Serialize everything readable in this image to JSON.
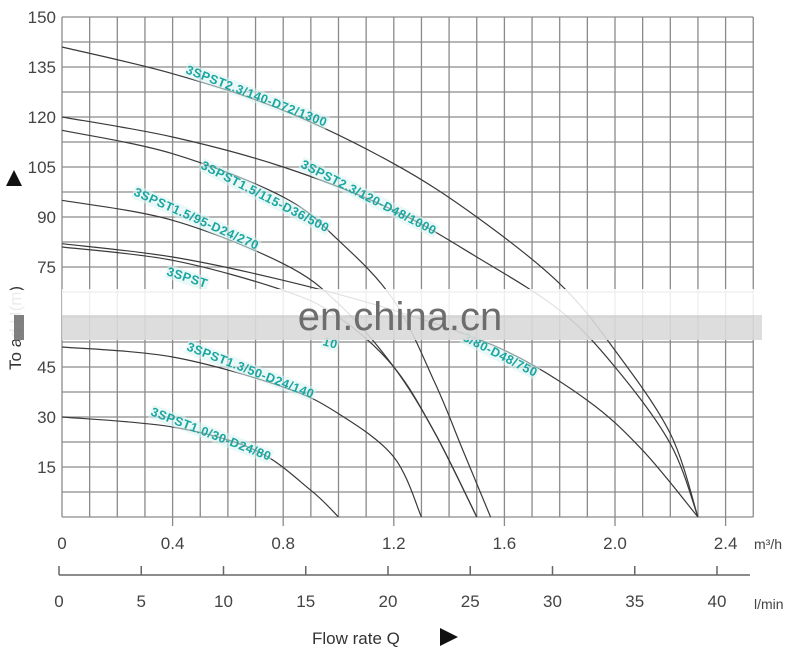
{
  "chart_data": {
    "type": "line",
    "title": "",
    "xlabel": "Flow rate Q",
    "ylabel": "Total Head H(m)",
    "x_unit_primary": "m³/h",
    "x_unit_secondary": "l/min",
    "xlim": [
      0,
      2.5
    ],
    "ylim": [
      0,
      150
    ],
    "grid": true,
    "y_ticks": [
      15,
      30,
      45,
      60,
      75,
      90,
      105,
      120,
      135,
      150
    ],
    "y_tick_labels": [
      "15",
      "30",
      "45",
      "",
      "75",
      "90",
      "105",
      "120",
      "135",
      "150"
    ],
    "x_ticks_primary": [
      0,
      0.4,
      0.8,
      1.2,
      1.6,
      2.0,
      2.4
    ],
    "x_tick_labels_primary": [
      "0",
      "0.4",
      "0.8",
      "1.2",
      "1.6",
      "2.0",
      "2.4"
    ],
    "x_ticks_secondary": [
      0,
      5,
      10,
      15,
      20,
      25,
      30,
      35,
      40
    ],
    "x_tick_labels_secondary": [
      "0",
      "5",
      "10",
      "15",
      "20",
      "25",
      "30",
      "35",
      "40"
    ],
    "watermark": "en.china.cn",
    "series": [
      {
        "name": "3SPST2.3/140-D72/1300",
        "x": [
          0,
          0.4,
          0.8,
          1.2,
          1.5,
          1.8,
          2.0,
          2.2,
          2.3
        ],
        "y": [
          141,
          133,
          122,
          106,
          90,
          70,
          50,
          25,
          0
        ]
      },
      {
        "name": "3SPST2.3/120-D48/1000",
        "x": [
          0,
          0.4,
          0.8,
          1.2,
          1.5,
          1.8,
          2.0,
          2.2,
          2.3
        ],
        "y": [
          120,
          114,
          105,
          92,
          78,
          62,
          45,
          22,
          0
        ]
      },
      {
        "name": "3SPST2.3/80-D48/750",
        "x": [
          0,
          0.4,
          0.8,
          1.2,
          1.6,
          1.9,
          2.1,
          2.3
        ],
        "y": [
          82,
          78,
          71,
          62,
          50,
          35,
          20,
          0
        ]
      },
      {
        "name": "3SPST1.5/115-D36/500",
        "x": [
          0,
          0.4,
          0.8,
          1.0,
          1.2,
          1.35,
          1.45,
          1.55
        ],
        "y": [
          116,
          109,
          96,
          83,
          65,
          40,
          20,
          0
        ]
      },
      {
        "name": "3SPST1.5/95-D24/270",
        "x": [
          0,
          0.4,
          0.8,
          1.0,
          1.2,
          1.35,
          1.5
        ],
        "y": [
          95,
          89,
          76,
          64,
          45,
          25,
          0
        ]
      },
      {
        "name": "3SPST...10 (partially obscured)",
        "x": [
          0,
          0.4,
          0.8,
          1.0,
          1.2,
          1.35,
          1.5
        ],
        "y": [
          81,
          77,
          68,
          60,
          45,
          25,
          0
        ]
      },
      {
        "name": "3SPST1.3/50-D24/140",
        "x": [
          0,
          0.4,
          0.8,
          1.0,
          1.2,
          1.3
        ],
        "y": [
          51,
          48,
          39,
          31,
          18,
          0
        ]
      },
      {
        "name": "3SPST1.0/30-D24/80",
        "x": [
          0,
          0.4,
          0.7,
          0.9,
          1.0
        ],
        "y": [
          30,
          27,
          20,
          8,
          0
        ]
      }
    ]
  },
  "labels": {
    "y_axis_title": "Total Head H(m)",
    "y_axis_title_visible": "To    ad H(m)",
    "x_axis_title": "Flow rate Q",
    "unit_primary": "m³/h",
    "unit_secondary": "l/min",
    "watermark": "en.china.cn",
    "curve_labels": [
      "3SPST2.3/140-D72/1300",
      "3SPST2.3/120-D48/1000",
      "3SPST1.5/115-D36/500",
      "3SPST1.5/95-D24/270",
      "3SPST",
      "10",
      "3/80-D48/750",
      "3SPST1.3/50-D24/140",
      "3SPST1.0/30-D24/80"
    ]
  },
  "colors": {
    "grid": "#8a8a8a",
    "curve": "#3a3a3a",
    "label": "#1aa6a0",
    "watermark_band": "#d9d9d9",
    "watermark_text": "#6d6d6d"
  }
}
